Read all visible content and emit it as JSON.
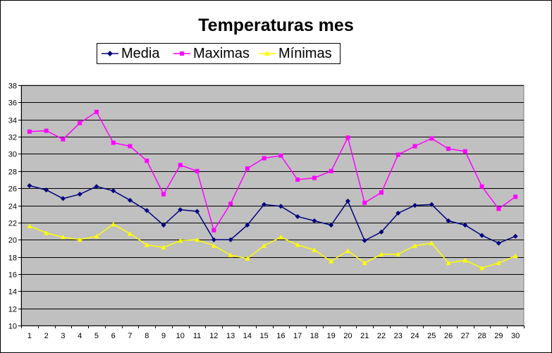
{
  "chart_data": {
    "type": "line",
    "title": "Temperaturas mes",
    "xlabel": "",
    "ylabel": "",
    "ylim": [
      10,
      38
    ],
    "y_ticks": [
      10,
      12,
      14,
      16,
      18,
      20,
      22,
      24,
      26,
      28,
      30,
      32,
      34,
      36,
      38
    ],
    "categories": [
      "1",
      "2",
      "3",
      "4",
      "5",
      "6",
      "7",
      "8",
      "9",
      "10",
      "11",
      "12",
      "13",
      "14",
      "15",
      "16",
      "17",
      "18",
      "19",
      "20",
      "21",
      "22",
      "23",
      "24",
      "25",
      "26",
      "27",
      "28",
      "29",
      "30"
    ],
    "grid": true,
    "legend_position": "top",
    "plot_background": "#c0c0c0",
    "series": [
      {
        "name": "Media",
        "color": "#000080",
        "marker": "diamond",
        "values": [
          26.3,
          25.8,
          24.8,
          25.3,
          26.2,
          25.7,
          24.6,
          23.4,
          21.7,
          23.5,
          23.3,
          20.0,
          20.0,
          21.7,
          24.1,
          23.9,
          22.7,
          22.2,
          21.7,
          24.5,
          19.9,
          20.9,
          23.1,
          24.0,
          24.1,
          22.2,
          21.7,
          20.5,
          19.6,
          20.4
        ]
      },
      {
        "name": "Maximas",
        "color": "#ff00ff",
        "marker": "square",
        "values": [
          32.6,
          32.7,
          31.7,
          33.6,
          34.9,
          31.3,
          30.9,
          29.2,
          25.3,
          28.7,
          28.0,
          21.1,
          24.2,
          28.3,
          29.5,
          29.8,
          27.0,
          27.2,
          28.0,
          31.9,
          24.3,
          25.5,
          29.9,
          30.9,
          31.8,
          30.6,
          30.3,
          26.2,
          23.6,
          25.0
        ]
      },
      {
        "name": "Mínimas",
        "color": "#ffff00",
        "marker": "triangle",
        "values": [
          21.6,
          20.8,
          20.3,
          20.0,
          20.4,
          21.8,
          20.7,
          19.4,
          19.1,
          19.9,
          20.0,
          19.3,
          18.2,
          17.8,
          19.3,
          20.3,
          19.4,
          18.8,
          17.5,
          18.7,
          17.3,
          18.3,
          18.3,
          19.3,
          19.6,
          17.3,
          17.6,
          16.7,
          17.3,
          18.1
        ]
      }
    ]
  }
}
